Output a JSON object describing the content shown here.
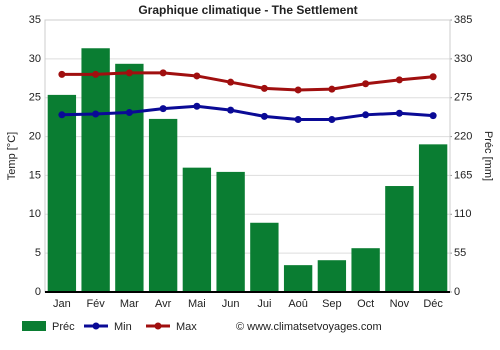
{
  "chart_data": {
    "type": "bar",
    "title": "Graphique climatique - The Settlement",
    "categories": [
      "Jan",
      "Fév",
      "Mar",
      "Avr",
      "Mai",
      "Jun",
      "Jui",
      "Aoû",
      "Sep",
      "Oct",
      "Nov",
      "Déc"
    ],
    "series": [
      {
        "name": "Préc",
        "type": "bar",
        "axis": "y2",
        "color": "#0a7d32",
        "values": [
          279,
          345,
          323,
          245,
          176,
          170,
          98,
          38,
          45,
          62,
          150,
          209
        ]
      },
      {
        "name": "Min",
        "type": "line",
        "color": "#0a0a96",
        "values": [
          22.8,
          22.9,
          23.1,
          23.6,
          23.9,
          23.4,
          22.6,
          22.2,
          22.2,
          22.8,
          23.0,
          22.7
        ]
      },
      {
        "name": "Max",
        "type": "line",
        "color": "#a00f0f",
        "values": [
          28.0,
          28.0,
          28.2,
          28.2,
          27.8,
          27.0,
          26.2,
          26.0,
          26.1,
          26.8,
          27.3,
          27.7
        ]
      }
    ],
    "ylabel": "Temp [°C]",
    "y2label": "Préc [mm]",
    "ylim": [
      0,
      35
    ],
    "yticks": [
      0,
      5,
      10,
      15,
      20,
      25,
      30,
      35
    ],
    "y2lim": [
      0,
      385
    ],
    "y2ticks": [
      0,
      55,
      110,
      165,
      220,
      275,
      330,
      385
    ],
    "grid": true,
    "legend": "bottom",
    "credit": "© www.climatsetvoyages.com"
  }
}
